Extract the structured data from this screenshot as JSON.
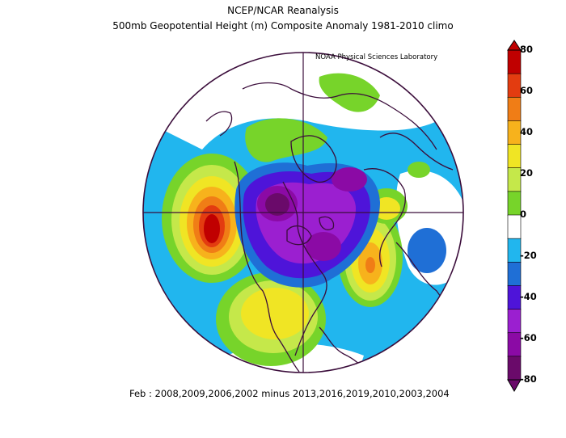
{
  "title": "NCEP/NCAR Reanalysis",
  "subtitle": "500mb Geopotential Height (m) Composite Anomaly 1981-2010 climo",
  "credit": "NOAA Physical Sciences Laboratory",
  "footer": "Feb : 2008,2009,2006,2002 minus 2013,2016,2019,2010,2003,2004",
  "colorbar": {
    "labels": [
      "80",
      "60",
      "40",
      "20",
      "0",
      "-20",
      "-40",
      "-60",
      "-80"
    ],
    "colors": [
      "#6a0a6a",
      "#8b0aa5",
      "#9b1fd0",
      "#4e14d9",
      "#1f6fd6",
      "#21b6ee",
      "#ffffff",
      "#77d42a",
      "#c5e84a",
      "#f0e524",
      "#f7b21c",
      "#f07d16",
      "#e33c10",
      "#c00000"
    ]
  },
  "map": {
    "projection": "north-polar-stereographic",
    "colors": {
      "background": "#21b6ee",
      "coast": "#3b0d3b",
      "pos_10_20": "#77d42a",
      "pos_20_30": "#c5e84a",
      "pos_30_40": "#f0e524",
      "pos_40_50": "#f7b21c",
      "pos_50_60": "#f07d16",
      "pos_60_70": "#e33c10",
      "pos_70_80": "#c00000",
      "neg_20_30": "#1f6fd6",
      "neg_30_40": "#4e14d9",
      "neg_40_50": "#9b1fd0",
      "neg_50_60": "#8b0aa5",
      "neg_60_70": "#6a0a6a",
      "white": "#ffffff"
    }
  }
}
